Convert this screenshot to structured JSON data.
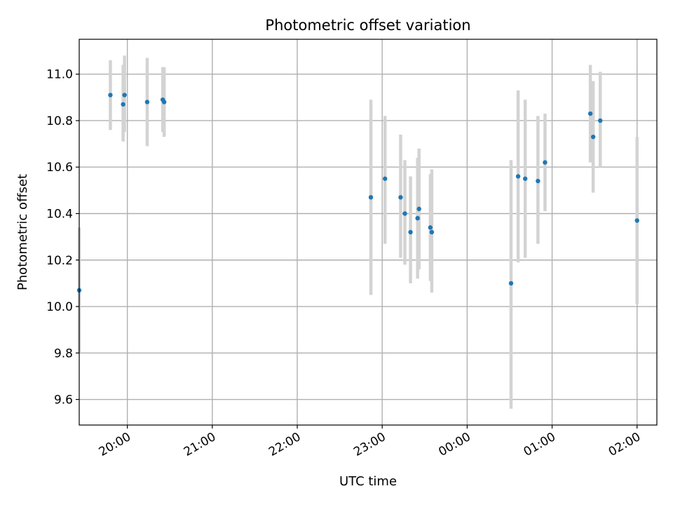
{
  "chart_data": {
    "type": "scatter",
    "title": "Photometric offset variation",
    "xlabel": "UTC time",
    "ylabel": "Photometric offset",
    "x_axis": {
      "type": "time",
      "range": [
        "2000-01-01T19:26",
        "2000-01-02T02:14"
      ],
      "ticks": [
        {
          "t": "2000-01-01T20:00",
          "label": "20:00"
        },
        {
          "t": "2000-01-01T21:00",
          "label": "21:00"
        },
        {
          "t": "2000-01-01T22:00",
          "label": "22:00"
        },
        {
          "t": "2000-01-01T23:00",
          "label": "23:00"
        },
        {
          "t": "2000-01-02T00:00",
          "label": "00:00"
        },
        {
          "t": "2000-01-02T01:00",
          "label": "01:00"
        },
        {
          "t": "2000-01-02T02:00",
          "label": "02:00"
        }
      ]
    },
    "y_axis": {
      "range": [
        9.49,
        11.15
      ],
      "ticks": [
        {
          "v": 9.6,
          "label": "9.6"
        },
        {
          "v": 9.8,
          "label": "9.8"
        },
        {
          "v": 10.0,
          "label": "10.0"
        },
        {
          "v": 10.2,
          "label": "10.2"
        },
        {
          "v": 10.4,
          "label": "10.4"
        },
        {
          "v": 10.6,
          "label": "10.6"
        },
        {
          "v": 10.8,
          "label": "10.8"
        },
        {
          "v": 11.0,
          "label": "11.0"
        }
      ]
    },
    "grid": true,
    "marker_color": "#1f77b4",
    "errorbar_color": "#d3d3d3",
    "points": [
      {
        "t": "2000-01-01T19:26",
        "y": 10.07,
        "lo": 9.8,
        "hi": 10.34
      },
      {
        "t": "2000-01-01T19:48",
        "y": 10.91,
        "lo": 10.76,
        "hi": 11.06
      },
      {
        "t": "2000-01-01T19:57",
        "y": 10.87,
        "lo": 10.71,
        "hi": 11.04
      },
      {
        "t": "2000-01-01T19:58",
        "y": 10.91,
        "lo": 10.75,
        "hi": 11.08
      },
      {
        "t": "2000-01-01T20:14",
        "y": 10.88,
        "lo": 10.69,
        "hi": 11.07
      },
      {
        "t": "2000-01-01T20:25",
        "y": 10.89,
        "lo": 10.75,
        "hi": 11.03
      },
      {
        "t": "2000-01-01T20:26",
        "y": 10.88,
        "lo": 10.73,
        "hi": 11.03
      },
      {
        "t": "2000-01-01T22:52",
        "y": 10.47,
        "lo": 10.05,
        "hi": 10.89
      },
      {
        "t": "2000-01-01T23:02",
        "y": 10.55,
        "lo": 10.27,
        "hi": 10.82
      },
      {
        "t": "2000-01-01T23:13",
        "y": 10.47,
        "lo": 10.21,
        "hi": 10.74
      },
      {
        "t": "2000-01-01T23:16",
        "y": 10.4,
        "lo": 10.18,
        "hi": 10.63
      },
      {
        "t": "2000-01-01T23:20",
        "y": 10.32,
        "lo": 10.1,
        "hi": 10.56
      },
      {
        "t": "2000-01-01T23:25",
        "y": 10.38,
        "lo": 10.12,
        "hi": 10.64
      },
      {
        "t": "2000-01-01T23:26",
        "y": 10.42,
        "lo": 10.16,
        "hi": 10.68
      },
      {
        "t": "2000-01-01T23:34",
        "y": 10.34,
        "lo": 10.11,
        "hi": 10.57
      },
      {
        "t": "2000-01-01T23:35",
        "y": 10.32,
        "lo": 10.06,
        "hi": 10.59
      },
      {
        "t": "2000-01-02T00:31",
        "y": 10.1,
        "lo": 9.56,
        "hi": 10.63
      },
      {
        "t": "2000-01-02T00:36",
        "y": 10.56,
        "lo": 10.19,
        "hi": 10.93
      },
      {
        "t": "2000-01-02T00:41",
        "y": 10.55,
        "lo": 10.21,
        "hi": 10.89
      },
      {
        "t": "2000-01-02T00:50",
        "y": 10.54,
        "lo": 10.27,
        "hi": 10.82
      },
      {
        "t": "2000-01-02T00:55",
        "y": 10.62,
        "lo": 10.41,
        "hi": 10.83
      },
      {
        "t": "2000-01-02T01:27",
        "y": 10.83,
        "lo": 10.62,
        "hi": 11.04
      },
      {
        "t": "2000-01-02T01:29",
        "y": 10.73,
        "lo": 10.49,
        "hi": 10.97
      },
      {
        "t": "2000-01-02T01:34",
        "y": 10.8,
        "lo": 10.6,
        "hi": 11.01
      },
      {
        "t": "2000-01-02T02:00",
        "y": 10.37,
        "lo": 10.01,
        "hi": 10.73
      }
    ]
  }
}
